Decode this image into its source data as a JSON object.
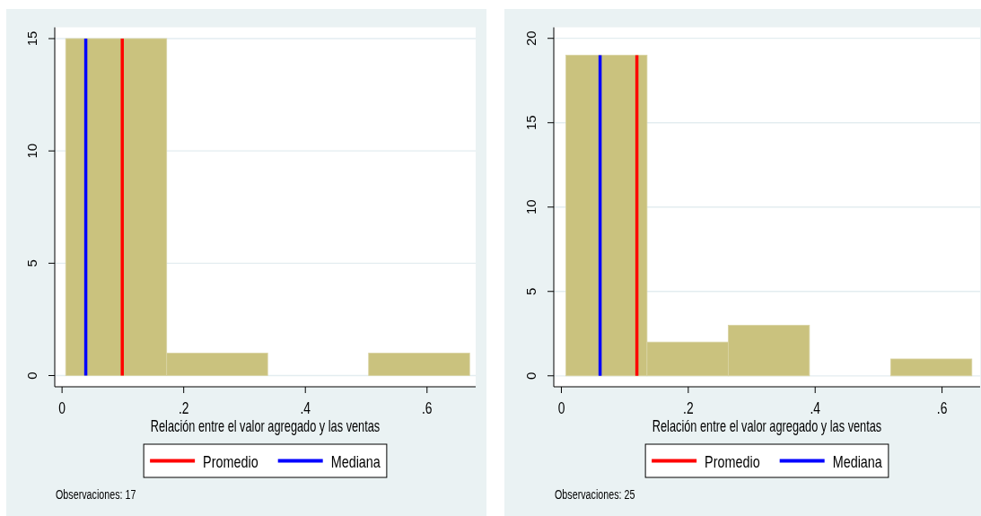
{
  "chart_data": [
    {
      "type": "histogram",
      "xlabel": "Relación entre el valor agregado y las ventas",
      "xlim": [
        -0.012,
        0.68
      ],
      "xticks": [
        0,
        {
          "value": 0.2,
          "label": ".2"
        },
        {
          "value": 0.4,
          "label": ".4"
        },
        {
          "value": 0.6,
          "label": ".6"
        }
      ],
      "ylim": [
        -0.5,
        15.5
      ],
      "yticks": [
        0,
        5,
        10,
        15
      ],
      "grid": "y",
      "legend": "bottom",
      "series": [
        {
          "bins": [
            0.006,
            0.172,
            0.338,
            0.504,
            0.67
          ],
          "values": [
            15,
            1,
            0,
            1
          ],
          "color": "#cac27e"
        },
        {
          "type": "line",
          "name": "Promedio",
          "color": "#ff0000",
          "x": [
            0.099,
            0.099
          ],
          "values": [
            0,
            15
          ]
        },
        {
          "type": "line",
          "name": "Mediana",
          "color": "#0000ff",
          "x": [
            0.039,
            0.039
          ],
          "values": [
            0,
            15
          ]
        }
      ],
      "annotations": [
        "Observaciones: 17"
      ]
    },
    {
      "type": "histogram",
      "xlabel": "Relación entre el valor agregado y las ventas",
      "xlim": [
        -0.012,
        0.66
      ],
      "xticks": [
        0,
        {
          "value": 0.2,
          "label": ".2"
        },
        {
          "value": 0.4,
          "label": ".4"
        },
        {
          "value": 0.6,
          "label": ".6"
        }
      ],
      "ylim": [
        -0.65,
        20.65
      ],
      "yticks": [
        0,
        5,
        10,
        15,
        20
      ],
      "grid": "y",
      "legend": "bottom",
      "series": [
        {
          "bins": [
            0.007,
            0.135,
            0.263,
            0.391,
            0.519,
            0.647
          ],
          "values": [
            19,
            2,
            3,
            0,
            1
          ],
          "color": "#cac27e"
        },
        {
          "type": "line",
          "name": "Promedio",
          "color": "#ff0000",
          "x": [
            0.119,
            0.119
          ],
          "values": [
            0,
            19
          ]
        },
        {
          "type": "line",
          "name": "Mediana",
          "color": "#0000ff",
          "x": [
            0.061,
            0.061
          ],
          "values": [
            0,
            19
          ]
        }
      ],
      "annotations": [
        "Observaciones: 25"
      ]
    }
  ]
}
